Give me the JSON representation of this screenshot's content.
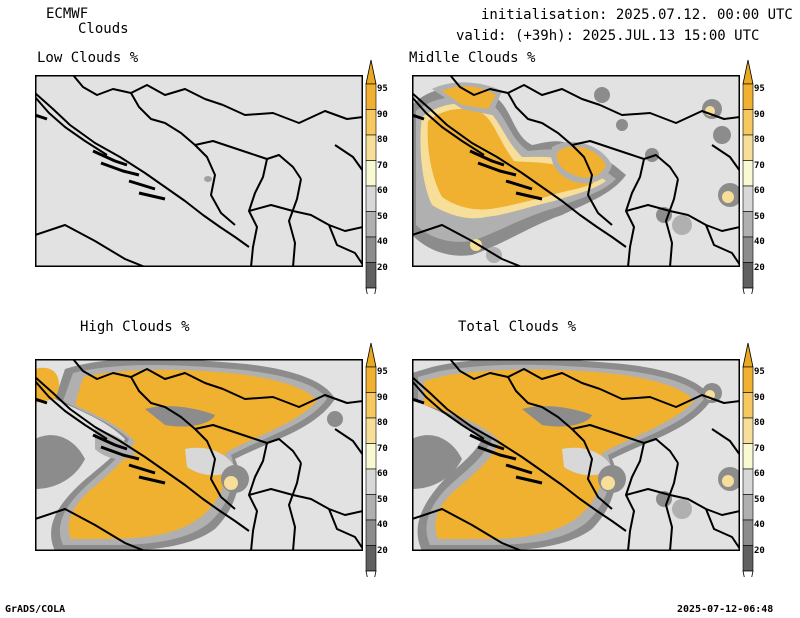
{
  "header": {
    "model": "ECMWF",
    "product": "Clouds",
    "init": "initialisation: 2025.07.12. 00:00 UTC",
    "valid": "valid: (+39h): 2025.JUL.13 15:00 UTC"
  },
  "panels": [
    {
      "title": "Low Clouds %"
    },
    {
      "title": "Midlle Clouds %"
    },
    {
      "title": "High Clouds %"
    },
    {
      "title": "Total Clouds %"
    }
  ],
  "colorbar": {
    "levels": [
      "95",
      "90",
      "80",
      "70",
      "60",
      "50",
      "40",
      "20"
    ],
    "colors": {
      "c95": "#f0b030",
      "c90": "#f5c860",
      "c80": "#f7df9a",
      "c70": "#fafad2",
      "c60": "#d8d8d8",
      "c50": "#b0b0b0",
      "c40": "#8c8c8c",
      "c20": "#606060",
      "above": "#e8a820",
      "below": "#ffffff"
    }
  },
  "footer": {
    "software": "GrADS/COLA",
    "timestamp": "2025-07-12-06:48"
  }
}
